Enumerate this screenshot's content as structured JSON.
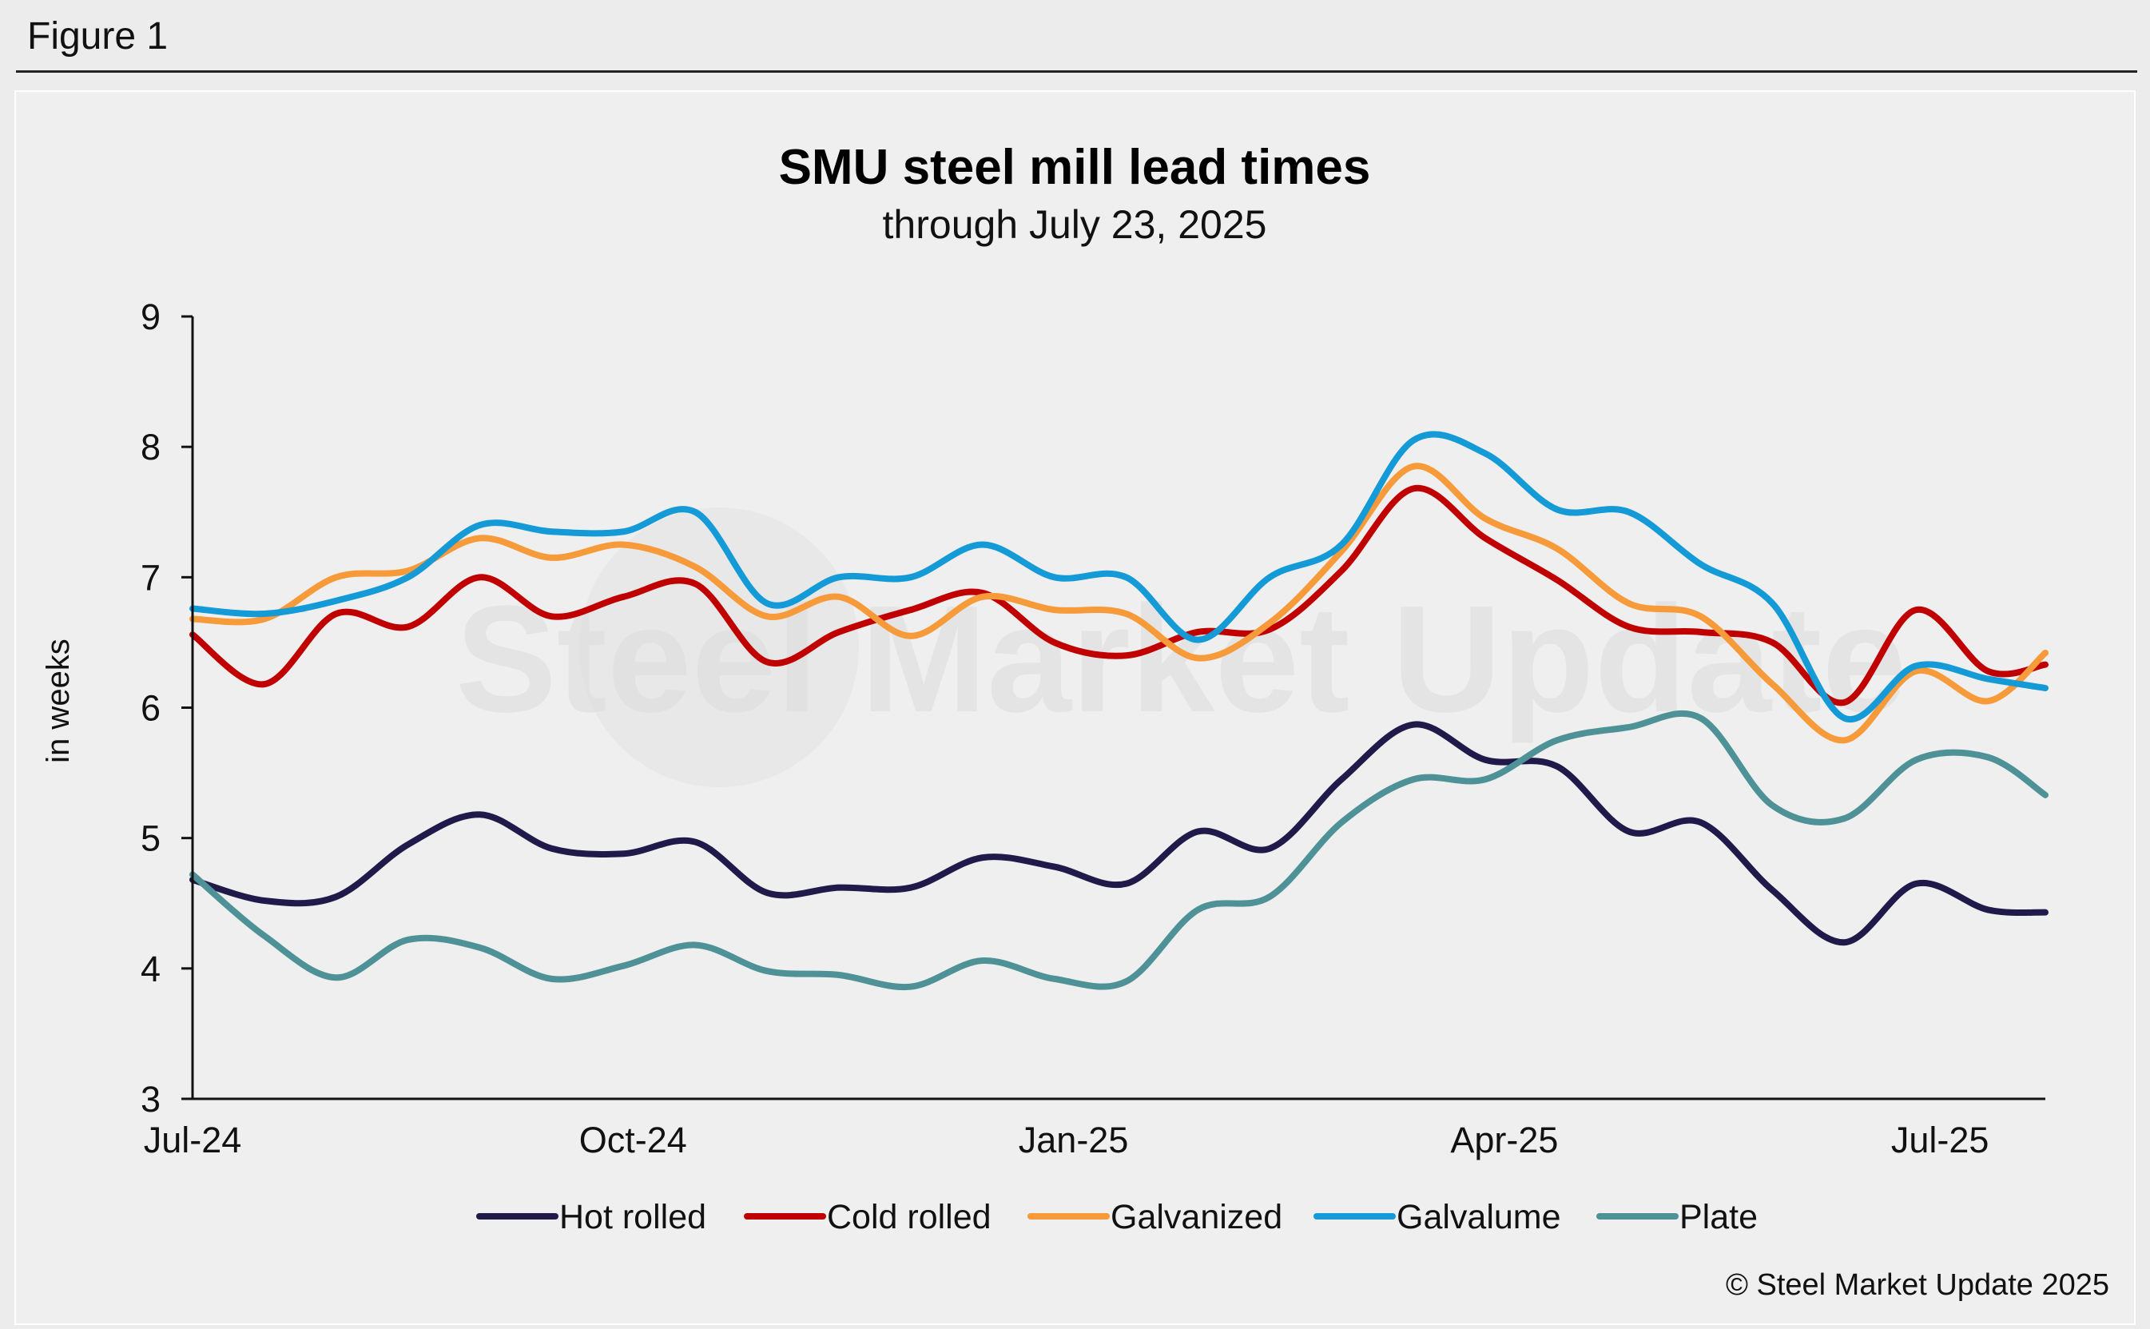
{
  "figure_label": "Figure 1",
  "copyright": "© Steel Market Update 2025",
  "watermark_text": "Steel Market Update",
  "chart_data": {
    "type": "line",
    "title": "SMU steel mill lead times",
    "subtitle": "through July 23, 2025",
    "xlabel": "",
    "ylabel": "in weeks",
    "ylim": [
      3,
      9
    ],
    "yticks": [
      3,
      4,
      5,
      6,
      7,
      8,
      9
    ],
    "xlim": [
      "2024-07-01",
      "2025-07-23"
    ],
    "xticks": [
      {
        "date": "2024-07-01",
        "label": "Jul-24"
      },
      {
        "date": "2024-10-01",
        "label": "Oct-24"
      },
      {
        "date": "2025-01-01",
        "label": "Jan-25"
      },
      {
        "date": "2025-04-01",
        "label": "Apr-25"
      },
      {
        "date": "2025-07-01",
        "label": "Jul-25"
      }
    ],
    "grid": false,
    "legend_position": "bottom",
    "x": [
      "2024-07-01",
      "2024-07-16",
      "2024-07-31",
      "2024-08-15",
      "2024-08-30",
      "2024-09-14",
      "2024-09-29",
      "2024-10-14",
      "2024-10-29",
      "2024-11-13",
      "2024-11-28",
      "2024-12-13",
      "2024-12-28",
      "2025-01-12",
      "2025-01-27",
      "2025-02-11",
      "2025-02-26",
      "2025-03-13",
      "2025-03-28",
      "2025-04-12",
      "2025-04-27",
      "2025-05-12",
      "2025-05-27",
      "2025-06-11",
      "2025-06-26",
      "2025-07-11",
      "2025-07-23"
    ],
    "series": [
      {
        "name": "Hot rolled",
        "color": "#1f1a4a",
        "values": [
          4.68,
          4.52,
          4.55,
          4.95,
          5.18,
          4.92,
          4.88,
          4.97,
          4.58,
          4.62,
          4.62,
          4.85,
          4.78,
          4.65,
          5.05,
          4.92,
          5.45,
          5.87,
          5.6,
          5.55,
          5.05,
          5.12,
          4.6,
          4.2,
          4.65,
          4.45,
          4.43
        ]
      },
      {
        "name": "Cold rolled",
        "color": "#c00000",
        "values": [
          6.56,
          6.18,
          6.72,
          6.62,
          7.0,
          6.7,
          6.85,
          6.95,
          6.35,
          6.58,
          6.75,
          6.88,
          6.5,
          6.4,
          6.58,
          6.6,
          7.05,
          7.68,
          7.3,
          6.98,
          6.62,
          6.58,
          6.5,
          6.04,
          6.75,
          6.28,
          6.33
        ]
      },
      {
        "name": "Galvanized",
        "color": "#f79a3a",
        "values": [
          6.68,
          6.68,
          7.0,
          7.05,
          7.3,
          7.15,
          7.25,
          7.08,
          6.7,
          6.85,
          6.55,
          6.85,
          6.75,
          6.72,
          6.38,
          6.65,
          7.2,
          7.85,
          7.45,
          7.22,
          6.8,
          6.7,
          6.18,
          5.75,
          6.28,
          6.05,
          6.42
        ]
      },
      {
        "name": "Galvalume",
        "color": "#149ad6",
        "values": [
          6.76,
          6.72,
          6.82,
          7.0,
          7.4,
          7.35,
          7.35,
          7.5,
          6.8,
          7.0,
          7.0,
          7.25,
          7.0,
          7.0,
          6.52,
          7.0,
          7.25,
          8.05,
          7.95,
          7.52,
          7.5,
          7.1,
          6.8,
          5.92,
          6.32,
          6.22,
          6.15
        ]
      },
      {
        "name": "Plate",
        "color": "#4e9298",
        "values": [
          4.72,
          4.25,
          3.93,
          4.22,
          4.16,
          3.92,
          4.02,
          4.18,
          3.98,
          3.95,
          3.86,
          4.06,
          3.92,
          3.9,
          4.45,
          4.55,
          5.12,
          5.45,
          5.45,
          5.75,
          5.85,
          5.92,
          5.25,
          5.15,
          5.6,
          5.62,
          5.33
        ]
      }
    ]
  }
}
